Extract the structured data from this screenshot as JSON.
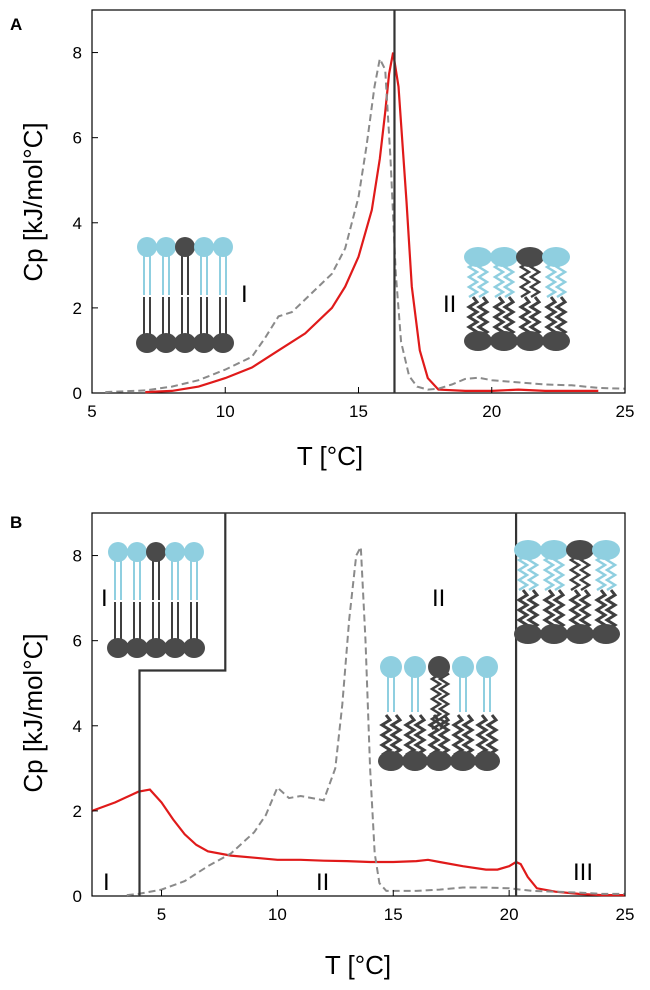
{
  "colors": {
    "red_trace": "#e01a1a",
    "gray_trace": "#8a8a8a",
    "marker_line": "#333333",
    "head_light": "#8fcfe0",
    "head_dark": "#4a4a4a",
    "tail_dark": "#3f3f3f",
    "tail_light": "#8fcfe0"
  },
  "icons": [
    "lipid-bilayer-gel-icon",
    "lipid-bilayer-fluid-icon",
    "lipid-bilayer-mixed-icon"
  ],
  "chart_data": [
    {
      "type": "line",
      "panel": "A",
      "xlabel": "T [°C]",
      "ylabel": "Cp [kJ/mol°C]",
      "xlim": [
        5,
        25
      ],
      "ylim": [
        0,
        9
      ],
      "xticks": [
        5,
        10,
        15,
        20,
        25
      ],
      "yticks": [
        0,
        2,
        4,
        6,
        8
      ],
      "grid": false,
      "series": [
        {
          "style": "solid",
          "color": "red",
          "x": [
            7,
            8,
            9,
            10,
            11,
            12,
            13,
            14,
            14.5,
            15,
            15.5,
            15.8,
            16,
            16.15,
            16.3,
            16.5,
            16.8,
            17,
            17.3,
            17.6,
            18,
            19,
            20,
            21,
            22,
            23,
            24
          ],
          "y": [
            0.02,
            0.05,
            0.15,
            0.35,
            0.6,
            1.0,
            1.4,
            2.0,
            2.5,
            3.2,
            4.3,
            5.5,
            6.6,
            7.5,
            8.0,
            7.2,
            4.5,
            2.5,
            1.0,
            0.35,
            0.08,
            0.05,
            0.05,
            0.08,
            0.05,
            0.05,
            0.05
          ]
        },
        {
          "style": "dashed",
          "color": "gray",
          "x": [
            5.5,
            7,
            8,
            9,
            10,
            11,
            11.5,
            12,
            12.5,
            13,
            13.5,
            14,
            14.5,
            15,
            15.3,
            15.6,
            15.8,
            16,
            16.2,
            16.4,
            16.6,
            16.9,
            17.2,
            17.6,
            18,
            18.5,
            19,
            19.5,
            20,
            21,
            22,
            23,
            24,
            25
          ],
          "y": [
            0.02,
            0.06,
            0.15,
            0.3,
            0.55,
            0.85,
            1.3,
            1.8,
            1.9,
            2.2,
            2.5,
            2.8,
            3.4,
            4.6,
            5.8,
            7.2,
            7.85,
            7.6,
            5.5,
            2.8,
            1.2,
            0.4,
            0.15,
            0.08,
            0.1,
            0.2,
            0.33,
            0.36,
            0.3,
            0.25,
            0.2,
            0.18,
            0.12,
            0.1
          ]
        }
      ],
      "vlines": [
        16.35
      ],
      "region_labels": [
        "I",
        "II"
      ]
    },
    {
      "type": "line",
      "panel": "B",
      "xlabel": "T [°C]",
      "ylabel": "Cp [kJ/mol°C]",
      "xlim": [
        2,
        25
      ],
      "ylim": [
        0,
        9
      ],
      "xticks": [
        5,
        10,
        15,
        20,
        25
      ],
      "yticks": [
        0,
        2,
        4,
        6,
        8
      ],
      "grid": false,
      "series": [
        {
          "style": "solid",
          "color": "red",
          "x": [
            2,
            3,
            4,
            4.5,
            5,
            5.5,
            6,
            6.5,
            7,
            8,
            9,
            10,
            11,
            12,
            13,
            14,
            15,
            16,
            16.5,
            17,
            18,
            19,
            19.5,
            20,
            20.3,
            20.5,
            20.8,
            21.2,
            22,
            23,
            24,
            25
          ],
          "y": [
            2.0,
            2.2,
            2.45,
            2.5,
            2.2,
            1.8,
            1.45,
            1.2,
            1.05,
            0.95,
            0.9,
            0.85,
            0.85,
            0.83,
            0.82,
            0.8,
            0.8,
            0.82,
            0.85,
            0.8,
            0.7,
            0.62,
            0.62,
            0.7,
            0.8,
            0.75,
            0.45,
            0.18,
            0.1,
            0.05,
            0.02,
            0.02
          ]
        },
        {
          "style": "dashed",
          "color": "gray",
          "x": [
            3.5,
            4,
            5,
            6,
            7,
            8,
            9,
            9.5,
            10,
            10.5,
            11,
            11.5,
            12,
            12.5,
            12.8,
            13.1,
            13.4,
            13.6,
            13.8,
            14,
            14.2,
            14.4,
            14.7,
            15,
            16,
            17,
            18,
            19,
            20,
            21,
            22,
            23,
            24,
            25
          ],
          "y": [
            0.02,
            0.05,
            0.15,
            0.35,
            0.7,
            1.0,
            1.5,
            1.9,
            2.55,
            2.3,
            2.35,
            2.3,
            2.25,
            3.0,
            4.5,
            6.5,
            8.0,
            8.2,
            6.0,
            3.0,
            1.0,
            0.3,
            0.12,
            0.12,
            0.12,
            0.15,
            0.2,
            0.2,
            0.18,
            0.12,
            0.1,
            0.08,
            0.05,
            0.05
          ]
        }
      ],
      "vlines": [
        20.3
      ],
      "boundary": [
        [
          4.05,
          0
        ],
        [
          4.05,
          5.3
        ],
        [
          7.75,
          5.3
        ],
        [
          7.75,
          9
        ]
      ],
      "region_labels": [
        "I",
        "II",
        "III",
        "II",
        "I"
      ]
    }
  ]
}
